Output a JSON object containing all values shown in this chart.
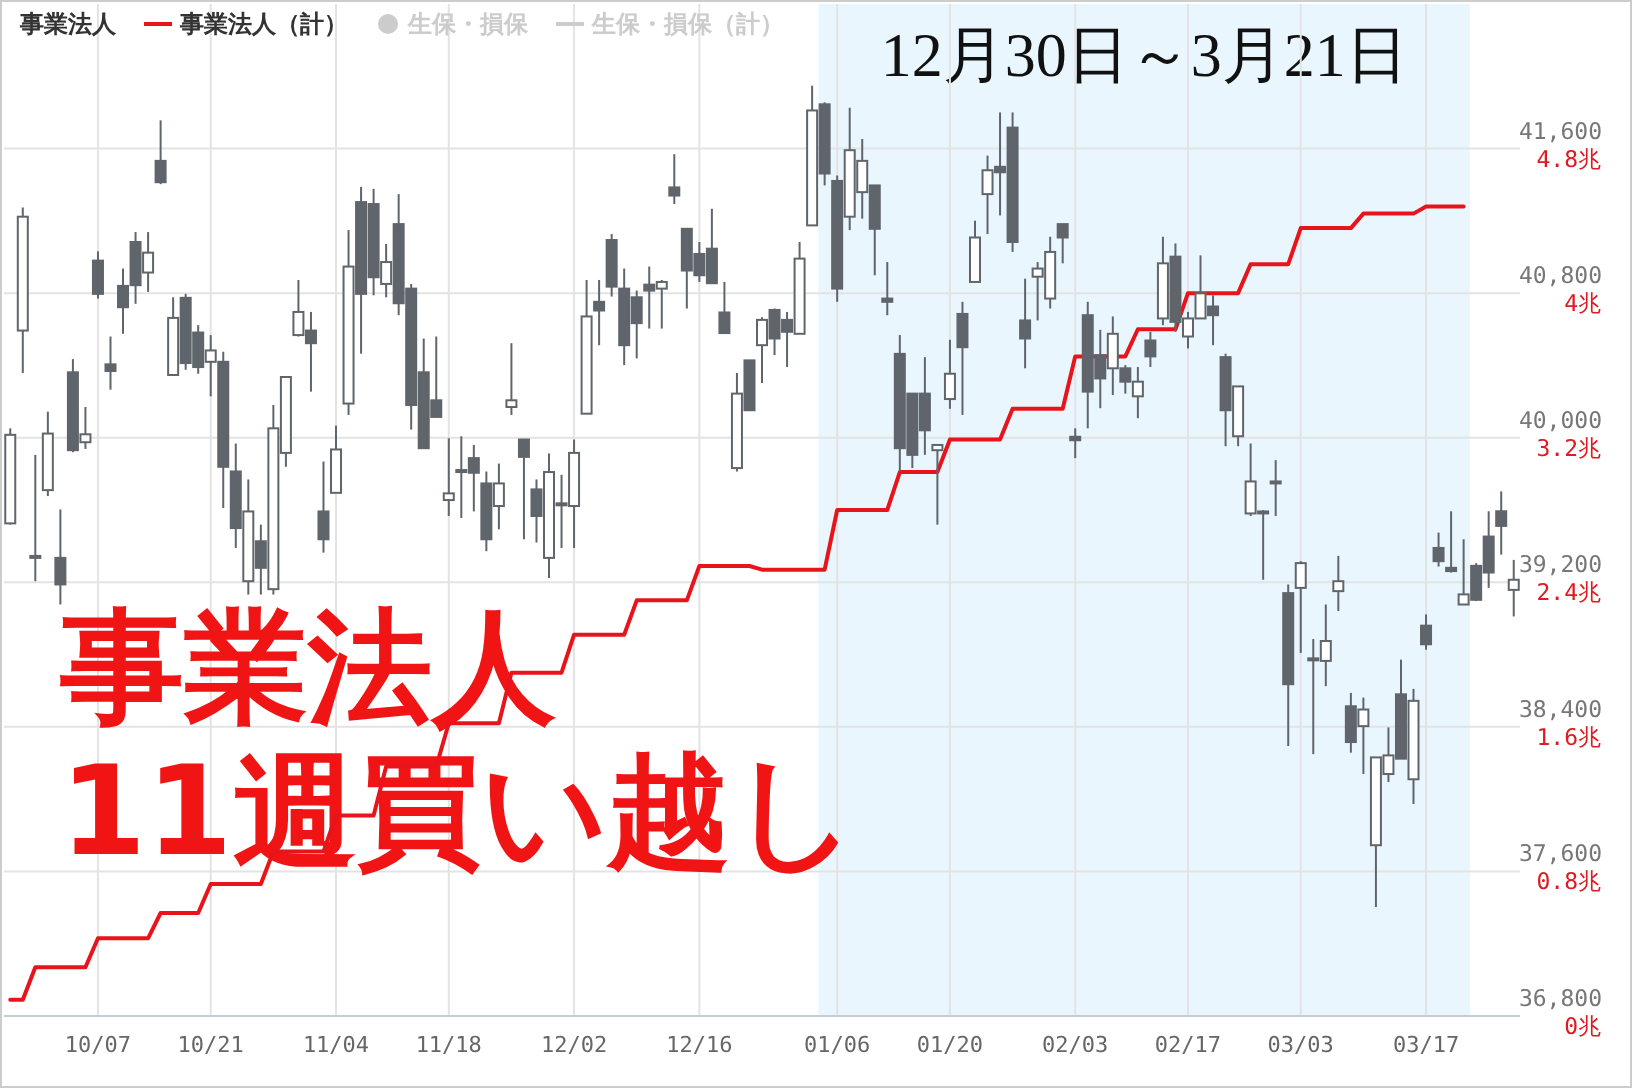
{
  "chart_data": {
    "type": "candlestick",
    "categories": [
      null,
      null,
      null,
      null,
      null,
      null,
      null,
      "10/07",
      null,
      null,
      null,
      null,
      null,
      null,
      null,
      null,
      "10/21",
      null,
      null,
      null,
      null,
      null,
      null,
      null,
      null,
      null,
      "11/04",
      null,
      null,
      null,
      null,
      null,
      null,
      null,
      null,
      "11/18",
      null,
      null,
      null,
      null,
      null,
      null,
      null,
      null,
      null,
      "12/02",
      null,
      null,
      null,
      null,
      null,
      null,
      null,
      null,
      null,
      "12/16",
      null,
      null,
      null,
      null,
      null,
      null,
      null,
      null,
      null,
      null,
      "01/06",
      null,
      null,
      null,
      null,
      null,
      null,
      null,
      null,
      "01/20",
      null,
      null,
      null,
      null,
      null,
      null,
      null,
      null,
      null,
      "02/03",
      null,
      null,
      null,
      null,
      null,
      null,
      null,
      null,
      "02/17",
      null,
      null,
      null,
      null,
      null,
      null,
      null,
      null,
      "03/03",
      null,
      null,
      null,
      null,
      null,
      null,
      null,
      null,
      null,
      "03/17",
      null,
      null,
      null,
      null,
      null,
      null,
      null
    ],
    "series": [
      {
        "type": "candlestick",
        "color": "#5f656b",
        "ohlc": [
          [
            39526,
            40052,
            39519,
            40016
          ],
          [
            40593,
            41274,
            40358,
            41223
          ],
          [
            39346,
            39905,
            39206,
            39346
          ],
          [
            39710,
            40144,
            39677,
            40023
          ],
          [
            39335,
            39603,
            39077,
            39188
          ],
          [
            40362,
            40435,
            39920,
            39931
          ],
          [
            39975,
            40170,
            39938,
            40019
          ],
          [
            40980,
            41031,
            40770,
            40796
          ],
          [
            40406,
            40560,
            40266,
            40369
          ],
          [
            40840,
            40936,
            40575,
            40722
          ],
          [
            41083,
            41138,
            40741,
            40844
          ],
          [
            40914,
            41138,
            40807,
            41024
          ],
          [
            41532,
            41756,
            41403,
            41414
          ],
          [
            40347,
            40777,
            40347,
            40663
          ],
          [
            40774,
            40796,
            40376,
            40413
          ],
          [
            40582,
            40623,
            40354,
            40391
          ],
          [
            40420,
            40568,
            40229,
            40483
          ],
          [
            40420,
            40476,
            39611,
            39839
          ],
          [
            39813,
            39968,
            39390,
            39500
          ],
          [
            39206,
            39769,
            39132,
            39592
          ],
          [
            39427,
            39519,
            39132,
            39280
          ],
          [
            39162,
            40181,
            39132,
            40052
          ],
          [
            39916,
            40336,
            39839,
            40336
          ],
          [
            40568,
            40873,
            40560,
            40696
          ],
          [
            40593,
            40696,
            40255,
            40523
          ],
          [
            39592,
            39868,
            39364,
            39438
          ],
          [
            39695,
            40067,
            39695,
            39935
          ],
          [
            40189,
            41149,
            40126,
            40947
          ],
          [
            41304,
            41388,
            40465,
            40796
          ],
          [
            41293,
            41377,
            40788,
            40888
          ],
          [
            40851,
            41072,
            40777,
            40972
          ],
          [
            41182,
            41348,
            40678,
            40744
          ],
          [
            40825,
            40851,
            40045,
            40181
          ],
          [
            40362,
            40549,
            39942,
            39942
          ],
          [
            40207,
            40560,
            40115,
            40115
          ],
          [
            39655,
            39997,
            39567,
            39692
          ],
          [
            39821,
            40008,
            39556,
            39821
          ],
          [
            39887,
            39960,
            39592,
            39806
          ],
          [
            39747,
            39813,
            39372,
            39438
          ],
          [
            39622,
            39857,
            39493,
            39747
          ],
          [
            40170,
            40523,
            40126,
            40207
          ],
          [
            39990,
            39990,
            39438,
            39894
          ],
          [
            39714,
            39769,
            39420,
            39567
          ],
          [
            39335,
            39913,
            39224,
            39810
          ],
          [
            39637,
            39795,
            39390,
            39637
          ],
          [
            39622,
            39990,
            39390,
            39916
          ],
          [
            40133,
            40873,
            40133,
            40671
          ],
          [
            40752,
            40873,
            40512,
            40704
          ],
          [
            41094,
            41127,
            40781,
            40836
          ],
          [
            40825,
            40936,
            40402,
            40512
          ],
          [
            40777,
            40814,
            40439,
            40634
          ],
          [
            40847,
            40947,
            40604,
            40814
          ],
          [
            40825,
            40873,
            40604,
            40862
          ],
          [
            41385,
            41569,
            41293,
            41340
          ],
          [
            41156,
            41156,
            40715,
            40925
          ],
          [
            41017,
            41083,
            40862,
            40899
          ],
          [
            41046,
            41267,
            40855,
            40855
          ],
          [
            40693,
            40862,
            40579,
            40579
          ],
          [
            39832,
            40358,
            39813,
            40244
          ],
          [
            40428,
            40428,
            40152,
            40152
          ],
          [
            40512,
            40667,
            40303,
            40652
          ],
          [
            40707,
            40715,
            40457,
            40549
          ],
          [
            40652,
            40696,
            40391,
            40586
          ],
          [
            40575,
            41083,
            40575,
            40991
          ],
          [
            41175,
            41948,
            41175,
            41811
          ],
          [
            41845,
            41856,
            41396,
            41462
          ],
          [
            41421,
            41451,
            40752,
            40825
          ],
          [
            41223,
            41826,
            41149,
            41591
          ],
          [
            41359,
            41653,
            41212,
            41532
          ],
          [
            41396,
            41396,
            40899,
            41156
          ],
          [
            40770,
            40972,
            40678,
            40752
          ],
          [
            40464,
            40568,
            39813,
            39942
          ],
          [
            40244,
            40244,
            39832,
            39905
          ],
          [
            40244,
            40446,
            39905,
            40041
          ],
          [
            39931,
            39960,
            39519,
            39960
          ],
          [
            40214,
            40542,
            40160,
            40354
          ],
          [
            40685,
            40752,
            40126,
            40501
          ],
          [
            40862,
            41201,
            40862,
            41108
          ],
          [
            41348,
            41561,
            41127,
            41480
          ],
          [
            41499,
            41800,
            41230,
            41469
          ],
          [
            41716,
            41800,
            41028,
            41083
          ],
          [
            40649,
            40880,
            40384,
            40549
          ],
          [
            40891,
            40972,
            40649,
            40936
          ],
          [
            40770,
            41112,
            40715,
            41028
          ],
          [
            41182,
            41182,
            40965,
            41108
          ],
          [
            40005,
            40052,
            39887,
            39986
          ],
          [
            40678,
            40752,
            40052,
            40255
          ],
          [
            40457,
            40597,
            40163,
            40328
          ],
          [
            40384,
            40671,
            40236,
            40575
          ],
          [
            40384,
            40402,
            40244,
            40310
          ],
          [
            40229,
            40391,
            40108,
            40310
          ],
          [
            40538,
            40586,
            40391,
            40450
          ],
          [
            40660,
            41112,
            40623,
            40965
          ],
          [
            41002,
            41075,
            40586,
            40641
          ],
          [
            40560,
            40696,
            40494,
            40660
          ],
          [
            40660,
            41009,
            40660,
            40799
          ],
          [
            40726,
            40788,
            40512,
            40678
          ],
          [
            40446,
            40465,
            39953,
            40152
          ],
          [
            40008,
            40284,
            39953,
            40284
          ],
          [
            39581,
            39968,
            39567,
            39758
          ],
          [
            39592,
            39600,
            39214,
            39592
          ],
          [
            39758,
            39876,
            39567,
            39758
          ],
          [
            39140,
            39188,
            38294,
            38636
          ],
          [
            39169,
            39317,
            38809,
            39306
          ],
          [
            38779,
            38886,
            38249,
            38779
          ],
          [
            38765,
            39077,
            38625,
            38875
          ],
          [
            39151,
            39346,
            39041,
            39206
          ],
          [
            38514,
            38588,
            38257,
            38316
          ],
          [
            38404,
            38562,
            38139,
            38496
          ],
          [
            37745,
            38231,
            37403,
            38231
          ],
          [
            38139,
            38397,
            38095,
            38242
          ],
          [
            38580,
            38772,
            38224,
            38224
          ],
          [
            38110,
            38610,
            37973,
            38544
          ],
          [
            38960,
            39022,
            38827,
            38857
          ],
          [
            39390,
            39475,
            39287,
            39317
          ],
          [
            39280,
            39593,
            39254,
            39262
          ],
          [
            39077,
            39438,
            39077,
            39133
          ],
          [
            39291,
            39306,
            39096,
            39103
          ],
          [
            39453,
            39593,
            39169,
            39254
          ],
          [
            39593,
            39703,
            39353,
            39512
          ],
          [
            39158,
            39324,
            39011,
            39214
          ]
        ]
      },
      {
        "name": "事業法人",
        "type": "bar",
        "color": null,
        "values": [
          null,
          null,
          null,
          null,
          null,
          null,
          null,
          null,
          null,
          null,
          null,
          null,
          null,
          null,
          null,
          null,
          null,
          null,
          null,
          null,
          null,
          null,
          null,
          null,
          null,
          null,
          null,
          null,
          null,
          null,
          null,
          null,
          null,
          null,
          null,
          null,
          null,
          null,
          null,
          null,
          null,
          null,
          null,
          null,
          null,
          null,
          null,
          null,
          null,
          null,
          null,
          null,
          null,
          null,
          null,
          null,
          null,
          null,
          null,
          null,
          null,
          null,
          null,
          null,
          null,
          null,
          null,
          null,
          null,
          null,
          null,
          null,
          null,
          null,
          null,
          null,
          null,
          null,
          null,
          null,
          null,
          null,
          null,
          null,
          null,
          null,
          null,
          null,
          null,
          null,
          null,
          null,
          null,
          null,
          null,
          null,
          null,
          null,
          null,
          null,
          null,
          null,
          null,
          null,
          null,
          null,
          null,
          null,
          null,
          null,
          null,
          null,
          null,
          null,
          null,
          null,
          null,
          null,
          null,
          null,
          null
        ]
      },
      {
        "name": "事業法人（計）",
        "type": "line",
        "axis": "y2",
        "color": "#e8141c",
        "values": [
          0.09,
          0.09,
          0.27,
          0.27,
          0.27,
          0.27,
          0.27,
          0.43,
          0.43,
          0.43,
          0.43,
          0.43,
          0.57,
          0.57,
          0.57,
          0.57,
          0.73,
          0.73,
          0.73,
          0.73,
          0.73,
          0.91,
          0.91,
          0.91,
          0.91,
          0.91,
          1.11,
          1.11,
          1.11,
          1.11,
          1.38,
          1.38,
          1.38,
          1.38,
          1.38,
          1.62,
          1.62,
          1.62,
          1.62,
          1.62,
          1.9,
          1.9,
          1.9,
          1.9,
          1.9,
          2.11,
          2.11,
          2.11,
          2.11,
          2.11,
          2.3,
          2.3,
          2.3,
          2.3,
          2.3,
          2.49,
          2.49,
          2.49,
          2.49,
          2.49,
          2.47,
          2.47,
          2.47,
          2.47,
          2.47,
          2.47,
          2.8,
          2.8,
          2.8,
          2.8,
          2.8,
          3.01,
          3.01,
          3.01,
          3.01,
          3.19,
          3.19,
          3.19,
          3.19,
          3.19,
          3.36,
          3.36,
          3.36,
          3.36,
          3.36,
          3.65,
          3.65,
          3.65,
          3.65,
          3.65,
          3.8,
          3.8,
          3.8,
          3.8,
          4.0,
          4.0,
          4.0,
          4.0,
          4.0,
          4.16,
          4.16,
          4.16,
          4.16,
          4.36,
          4.36,
          4.36,
          4.36,
          4.36,
          4.44,
          4.44,
          4.44,
          4.44,
          4.44,
          4.48,
          4.48,
          4.48,
          4.48,
          null,
          null,
          null,
          null
        ]
      },
      {
        "name": "生保・損保",
        "type": "scatter",
        "color": "#cccccc",
        "values": [
          null,
          null,
          null,
          null,
          null,
          null,
          null,
          null,
          null,
          null,
          null,
          null,
          null,
          null,
          null,
          null,
          null,
          null,
          null,
          null,
          null,
          null,
          null,
          null,
          null,
          null,
          null,
          null,
          null,
          null,
          null,
          null,
          null,
          null,
          null,
          null,
          null,
          null,
          null,
          null,
          null,
          null,
          null,
          null,
          null,
          null,
          null,
          null,
          null,
          null,
          null,
          null,
          null,
          null,
          null,
          null,
          null,
          null,
          null,
          null,
          null,
          null,
          null,
          null,
          null,
          null,
          null,
          null,
          null,
          null,
          null,
          null,
          null,
          null,
          null,
          null,
          null,
          null,
          null,
          null,
          null,
          null,
          null,
          null,
          null,
          null,
          null,
          null,
          null,
          null,
          null,
          null,
          null,
          null,
          null,
          null,
          null,
          null,
          null,
          null,
          null,
          null,
          null,
          null,
          null,
          null,
          null,
          null,
          null,
          null,
          null,
          null,
          null,
          null,
          null,
          null,
          null,
          null,
          null,
          null,
          null
        ]
      },
      {
        "name": "生保・損保（計）",
        "type": "line",
        "axis": "y2",
        "color": "#cccccc",
        "values": [
          null,
          null,
          null,
          null,
          null,
          null,
          null,
          null,
          null,
          null,
          null,
          null,
          null,
          null,
          null,
          null,
          null,
          null,
          null,
          null,
          null,
          null,
          null,
          null,
          null,
          null,
          null,
          null,
          null,
          null,
          null,
          null,
          null,
          null,
          null,
          null,
          null,
          null,
          null,
          null,
          null,
          null,
          null,
          null,
          null,
          null,
          null,
          null,
          null,
          null,
          null,
          null,
          null,
          null,
          null,
          null,
          null,
          null,
          null,
          null,
          null,
          null,
          null,
          null,
          null,
          null,
          null,
          null,
          null,
          null,
          null,
          null,
          null,
          null,
          null,
          null,
          null,
          null,
          null,
          null,
          null,
          null,
          null,
          null,
          null,
          null,
          null,
          null,
          null,
          null,
          null,
          null,
          null,
          null,
          null,
          null,
          null,
          null,
          null,
          null,
          null,
          null,
          null,
          null,
          null,
          null,
          null,
          null,
          null,
          null,
          null,
          null,
          null,
          null,
          null,
          null,
          null,
          null,
          null,
          null,
          null
        ]
      }
    ],
    "ylim": [
      36800,
      42400
    ],
    "yticks": [
      {
        "value": 36800,
        "label": "36,800"
      },
      {
        "value": 37600,
        "label": "37,600"
      },
      {
        "value": 38400,
        "label": "38,400"
      },
      {
        "value": 39200,
        "label": "39,200"
      },
      {
        "value": 40000,
        "label": "40,000"
      },
      {
        "value": 40800,
        "label": "40,800"
      },
      {
        "value": 41600,
        "label": "41,600"
      }
    ],
    "y2lim": [
      0,
      5.6
    ],
    "y2ticks": [
      {
        "value": 0,
        "label": "0兆"
      },
      {
        "value": 0.8,
        "label": "0.8兆"
      },
      {
        "value": 1.6,
        "label": "1.6兆"
      },
      {
        "value": 2.4,
        "label": "2.4兆"
      },
      {
        "value": 3.2,
        "label": "3.2兆"
      },
      {
        "value": 4,
        "label": "4兆"
      },
      {
        "value": 4.8,
        "label": "4.8兆"
      }
    ],
    "title": "12月30日～3月21日",
    "annotations": [
      "事業法人\n11週買い越し"
    ],
    "grid": true,
    "legend": "top left"
  }
}
